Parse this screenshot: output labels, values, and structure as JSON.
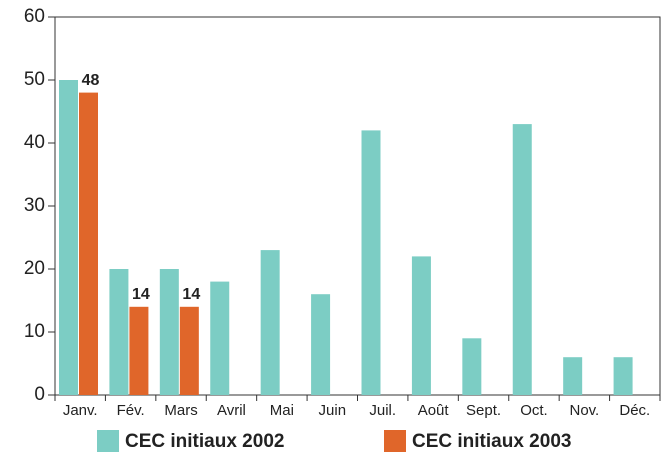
{
  "chart_data": {
    "type": "bar",
    "categories": [
      "Janv.",
      "Fév.",
      "Mars",
      "Avril",
      "Mai",
      "Juin",
      "Juil.",
      "Août",
      "Sept.",
      "Oct.",
      "Nov.",
      "Déc."
    ],
    "series": [
      {
        "name": "CEC initiaux 2002",
        "color": "#7ccdc4",
        "values": [
          50,
          20,
          20,
          18,
          23,
          16,
          42,
          22,
          9,
          43,
          6,
          6
        ]
      },
      {
        "name": "CEC initiaux 2003",
        "color": "#e0662a",
        "values": [
          48,
          14,
          14,
          null,
          null,
          null,
          null,
          null,
          null,
          null,
          null,
          null
        ]
      }
    ],
    "data_labels_series": [
      "CEC initiaux 2003"
    ],
    "ylim": [
      0,
      60
    ],
    "yticks": [
      0,
      10,
      20,
      30,
      40,
      50,
      60
    ],
    "grid": false
  }
}
